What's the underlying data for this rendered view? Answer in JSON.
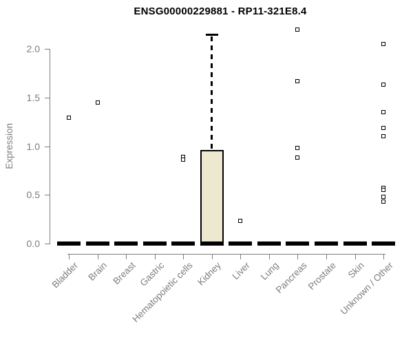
{
  "figure_title": "ENSG00000229881 - RP11-321E8.4",
  "chart_data": {
    "type": "boxplot",
    "title": "ENSG00000229881 - RP11-321E8.4",
    "xlabel": "",
    "ylabel": "Expression",
    "ylim": [
      0.0,
      2.25
    ],
    "yticks": [
      0.0,
      0.5,
      1.0,
      1.5,
      2.0
    ],
    "grid": false,
    "legend": "none",
    "categories": [
      "Bladder",
      "Brain",
      "Breast",
      "Gastric",
      "Hematopoietic cells",
      "Kidney",
      "Liver",
      "Lung",
      "Pancreas",
      "Prostate",
      "Skin",
      "Unknown / Other"
    ],
    "boxes": [
      {
        "category": "Bladder",
        "q1": 0,
        "median": 0,
        "q3": 0,
        "whisker_low": 0,
        "whisker_high": 0,
        "outliers": [
          1.29
        ]
      },
      {
        "category": "Brain",
        "q1": 0,
        "median": 0,
        "q3": 0,
        "whisker_low": 0,
        "whisker_high": 0,
        "outliers": [
          1.45
        ]
      },
      {
        "category": "Breast",
        "q1": 0,
        "median": 0,
        "q3": 0,
        "whisker_low": 0,
        "whisker_high": 0,
        "outliers": []
      },
      {
        "category": "Gastric",
        "q1": 0,
        "median": 0,
        "q3": 0,
        "whisker_low": 0,
        "whisker_high": 0,
        "outliers": []
      },
      {
        "category": "Hematopoietic cells",
        "q1": 0,
        "median": 0,
        "q3": 0,
        "whisker_low": 0,
        "whisker_high": 0,
        "outliers": [
          0.89,
          0.86
        ]
      },
      {
        "category": "Kidney",
        "q1": 0,
        "median": 0,
        "q3": 0.96,
        "whisker_low": 0,
        "whisker_high": 2.15,
        "outliers": []
      },
      {
        "category": "Liver",
        "q1": 0,
        "median": 0,
        "q3": 0,
        "whisker_low": 0,
        "whisker_high": 0,
        "outliers": [
          0.23
        ]
      },
      {
        "category": "Lung",
        "q1": 0,
        "median": 0,
        "q3": 0,
        "whisker_low": 0,
        "whisker_high": 0,
        "outliers": []
      },
      {
        "category": "Pancreas",
        "q1": 0,
        "median": 0,
        "q3": 0,
        "whisker_low": 0,
        "whisker_high": 0,
        "outliers": [
          2.2,
          1.67,
          0.98,
          0.88
        ]
      },
      {
        "category": "Prostate",
        "q1": 0,
        "median": 0,
        "q3": 0,
        "whisker_low": 0,
        "whisker_high": 0,
        "outliers": []
      },
      {
        "category": "Skin",
        "q1": 0,
        "median": 0,
        "q3": 0,
        "whisker_low": 0,
        "whisker_high": 0,
        "outliers": []
      },
      {
        "category": "Unknown / Other",
        "q1": 0,
        "median": 0,
        "q3": 0,
        "whisker_low": 0,
        "whisker_high": 0,
        "outliers": [
          2.05,
          1.63,
          1.35,
          1.19,
          1.1,
          0.57,
          0.55,
          0.48,
          0.43
        ]
      }
    ],
    "colors": {
      "box_fill": "#EDE8D0",
      "box_border": "#000000",
      "median": "#000000",
      "whisker": "#000000",
      "outlier_fill": "#FFFFFF",
      "outlier_border": "#000000",
      "axis": "#7D7D7D",
      "tick_label": "#7D7D7D",
      "title": "#000000",
      "background": "#FFFFFF"
    }
  }
}
